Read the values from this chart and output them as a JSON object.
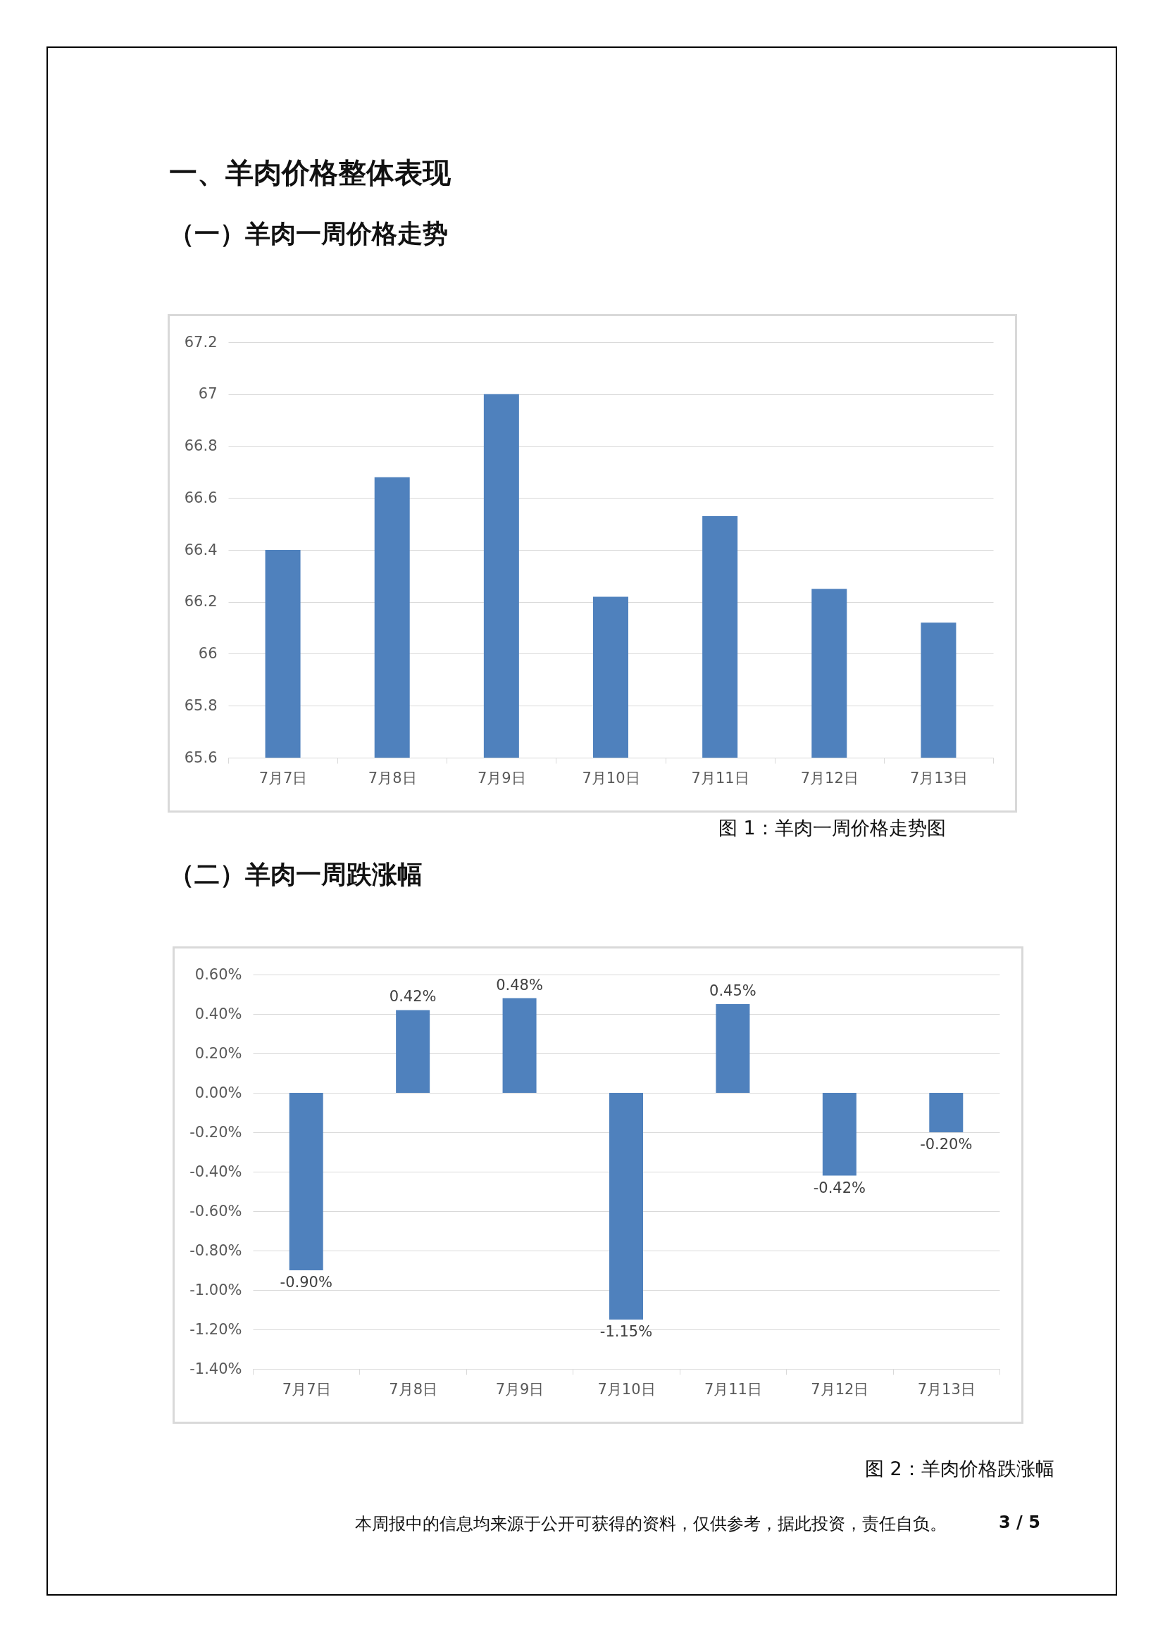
{
  "chart_data": [
    {
      "type": "bar",
      "title": "一、羊肉价格整体表现",
      "subtitle": "（一）羊肉一周价格走势",
      "categories": [
        "7月7日",
        "7月8日",
        "7月9日",
        "7月10日",
        "7月11日",
        "7月12日",
        "7月13日"
      ],
      "values": [
        66.4,
        66.68,
        67.0,
        66.22,
        66.53,
        66.25,
        66.12
      ],
      "color": "#4f81bd",
      "ylim": [
        65.6,
        67.2
      ],
      "yticks": [
        65.6,
        65.8,
        66,
        66.2,
        66.4,
        66.6,
        66.8,
        67,
        67.2
      ],
      "grid": "y",
      "annotations": [
        "图 1：羊肉一周价格走势图"
      ]
    },
    {
      "type": "bar",
      "title": "（二）羊肉一周跌涨幅",
      "categories": [
        "7月7日",
        "7月8日",
        "7月9日",
        "7月10日",
        "7月11日",
        "7月12日",
        "7月13日"
      ],
      "values": [
        -0.9,
        0.42,
        0.48,
        -1.15,
        0.45,
        -0.42,
        -0.2
      ],
      "color": "#4f81bd",
      "value_labels": [
        "-0.90%",
        "0.42%",
        "0.48%",
        "-1.15%",
        "0.45%",
        "-0.42%",
        "-0.20%"
      ],
      "ylim": [
        -1.4,
        0.6
      ],
      "yticks": [
        {
          "value": -1.4,
          "label": "-1.40%"
        },
        {
          "value": -1.2,
          "label": "-1.20%"
        },
        {
          "value": -1.0,
          "label": "-1.00%"
        },
        {
          "value": -0.8,
          "label": "-0.80%"
        },
        {
          "value": -0.6,
          "label": "-0.60%"
        },
        {
          "value": -0.4,
          "label": "-0.40%"
        },
        {
          "value": -0.2,
          "label": "-0.20%"
        },
        {
          "value": 0,
          "label": "0.00%"
        },
        {
          "value": 0.2,
          "label": "0.20%"
        },
        {
          "value": 0.4,
          "label": "0.40%"
        },
        {
          "value": 0.6,
          "label": "0.60%"
        }
      ],
      "grid": "y",
      "annotations": [
        "图 2：羊肉价格跌涨幅",
        "本周报中的信息均来源于公开可获得的资料，仅供参考，据此投资，责任自负。",
        "3 / 5"
      ]
    }
  ]
}
